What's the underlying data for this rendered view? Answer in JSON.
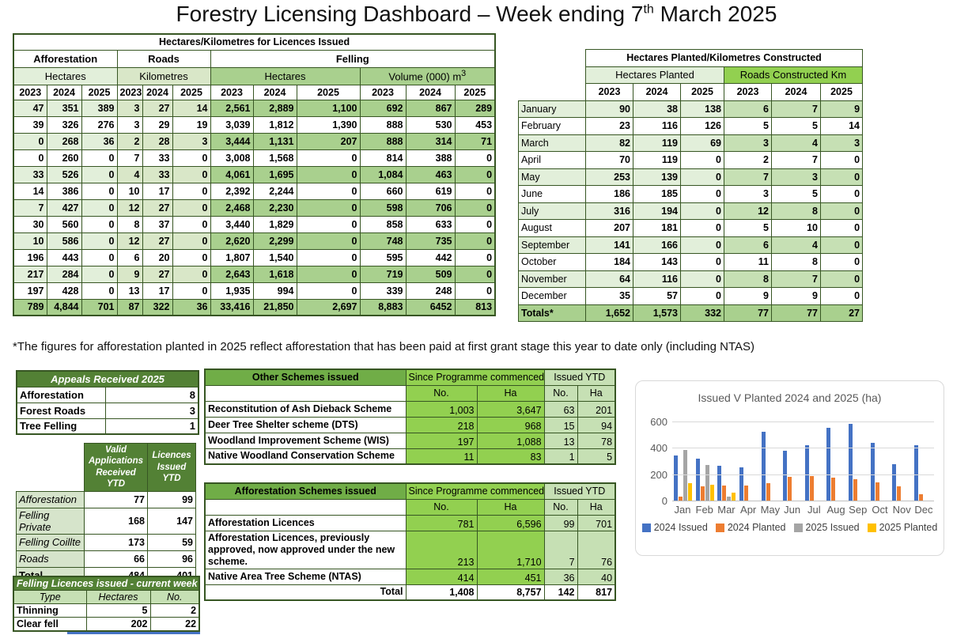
{
  "title": {
    "prefix": "Forestry Licensing Dashboard – Week ending 7",
    "sup": "th",
    "suffix": " March 2025"
  },
  "colors": {
    "border_dark_green": "#375623",
    "header_dark_green": "#538135",
    "green_bright": "#92D050",
    "green_medium": "#A9D08E",
    "green_light": "#C6E0B4",
    "green_pale": "#E2EFDA",
    "scheme_header_green": "#70AD47",
    "partial_row_blue": "#4472C4"
  },
  "licences_table": {
    "title": "Hectares/Kilometres for Licences Issued",
    "group_headers": [
      "Afforestation",
      "Roads",
      "Felling"
    ],
    "measure_headers": [
      "Hectares",
      "Kilometres",
      "Hectares"
    ],
    "volume_header": {
      "text": "Volume (000) m",
      "sup": "3"
    },
    "years": [
      "2023",
      "2024",
      "2025",
      "2023",
      "2024",
      "2025",
      "2023",
      "2024",
      "2025",
      "2023",
      "2024",
      "2025"
    ],
    "rows": [
      [
        "47",
        "351",
        "389",
        "3",
        "27",
        "14",
        "2,561",
        "2,889",
        "1,100",
        "692",
        "867",
        "289"
      ],
      [
        "39",
        "326",
        "276",
        "3",
        "29",
        "19",
        "3,039",
        "1,812",
        "1,390",
        "888",
        "530",
        "453"
      ],
      [
        "0",
        "268",
        "36",
        "2",
        "28",
        "3",
        "3,444",
        "1,131",
        "207",
        "888",
        "314",
        "71"
      ],
      [
        "0",
        "260",
        "0",
        "7",
        "33",
        "0",
        "3,008",
        "1,568",
        "0",
        "814",
        "388",
        "0"
      ],
      [
        "33",
        "526",
        "0",
        "4",
        "33",
        "0",
        "4,061",
        "1,695",
        "0",
        "1,084",
        "463",
        "0"
      ],
      [
        "14",
        "386",
        "0",
        "10",
        "17",
        "0",
        "2,392",
        "2,244",
        "0",
        "660",
        "619",
        "0"
      ],
      [
        "7",
        "427",
        "0",
        "12",
        "27",
        "0",
        "2,468",
        "2,230",
        "0",
        "598",
        "706",
        "0"
      ],
      [
        "30",
        "560",
        "0",
        "8",
        "37",
        "0",
        "3,440",
        "1,829",
        "0",
        "858",
        "633",
        "0"
      ],
      [
        "10",
        "586",
        "0",
        "12",
        "27",
        "0",
        "2,620",
        "2,299",
        "0",
        "748",
        "735",
        "0"
      ],
      [
        "196",
        "443",
        "0",
        "6",
        "20",
        "0",
        "1,807",
        "1,540",
        "0",
        "595",
        "442",
        "0"
      ],
      [
        "217",
        "284",
        "0",
        "9",
        "27",
        "0",
        "2,643",
        "1,618",
        "0",
        "719",
        "509",
        "0"
      ],
      [
        "197",
        "428",
        "0",
        "13",
        "17",
        "0",
        "1,935",
        "994",
        "0",
        "339",
        "248",
        "0"
      ]
    ],
    "totals": [
      "789",
      "4,844",
      "701",
      "87",
      "322",
      "36",
      "33,416",
      "21,850",
      "2,697",
      "8,883",
      "6452",
      "813"
    ]
  },
  "planted_table": {
    "title": "Hectares Planted/Kilometres Constructed",
    "group_headers": [
      "Hectares Planted",
      "Roads Constructed Km"
    ],
    "years": [
      "2023",
      "2024",
      "2025",
      "2023",
      "2024",
      "2025"
    ],
    "rows": [
      {
        "month": "January",
        "values": [
          "90",
          "38",
          "138",
          "6",
          "7",
          "9"
        ]
      },
      {
        "month": "February",
        "values": [
          "23",
          "116",
          "126",
          "5",
          "5",
          "14"
        ]
      },
      {
        "month": "March",
        "values": [
          "82",
          "119",
          "69",
          "3",
          "4",
          "3"
        ]
      },
      {
        "month": "April",
        "values": [
          "70",
          "119",
          "0",
          "2",
          "7",
          "0"
        ]
      },
      {
        "month": "May",
        "values": [
          "253",
          "139",
          "0",
          "7",
          "3",
          "0"
        ]
      },
      {
        "month": "June",
        "values": [
          "186",
          "185",
          "0",
          "3",
          "5",
          "0"
        ]
      },
      {
        "month": "July",
        "values": [
          "316",
          "194",
          "0",
          "12",
          "8",
          "0"
        ]
      },
      {
        "month": "August",
        "values": [
          "207",
          "181",
          "0",
          "5",
          "10",
          "0"
        ]
      },
      {
        "month": "September",
        "values": [
          "141",
          "166",
          "0",
          "6",
          "4",
          "0"
        ]
      },
      {
        "month": "October",
        "values": [
          "184",
          "143",
          "0",
          "11",
          "8",
          "0"
        ]
      },
      {
        "month": "November",
        "values": [
          "64",
          "116",
          "0",
          "8",
          "7",
          "0"
        ]
      },
      {
        "month": "December",
        "values": [
          "35",
          "57",
          "0",
          "9",
          "9",
          "0"
        ]
      }
    ],
    "totals_label": "Totals*",
    "totals": [
      "1,652",
      "1,573",
      "332",
      "77",
      "77",
      "27"
    ]
  },
  "footnote": "*The figures for afforestation planted in 2025 reflect afforestation that has been paid at first grant stage this year to date only (including NTAS)",
  "appeals": {
    "title": "Appeals Received 2025",
    "rows": [
      {
        "label": "Afforestation",
        "value": "8"
      },
      {
        "label": "Forest Roads",
        "value": "3"
      },
      {
        "label": "Tree Felling",
        "value": "1"
      }
    ]
  },
  "valid_applications": {
    "headers": [
      "Valid Applications Received YTD",
      "Licences Issued YTD"
    ],
    "rows": [
      {
        "label": "Afforestation",
        "values": [
          "77",
          "99"
        ]
      },
      {
        "label": "Felling Private",
        "values": [
          "168",
          "147"
        ]
      },
      {
        "label": "Felling Coillte",
        "values": [
          "173",
          "59"
        ]
      },
      {
        "label": "Roads",
        "values": [
          "66",
          "96"
        ]
      }
    ],
    "total": {
      "label": "Total",
      "values": [
        "484",
        "401"
      ]
    }
  },
  "felling_week": {
    "title": "Felling Licences issued - current week",
    "headers": [
      "Type",
      "Hectares",
      "No."
    ],
    "rows": [
      {
        "label": "Thinning",
        "values": [
          "5",
          "2"
        ]
      },
      {
        "label": "Clear fell",
        "values": [
          "202",
          "22"
        ]
      }
    ]
  },
  "other_schemes": {
    "title": "Other Schemes issued",
    "col_groups": [
      "Since Programme commenced",
      "Issued YTD"
    ],
    "subheaders": [
      "No.",
      "Ha",
      "No.",
      "Ha"
    ],
    "rows": [
      {
        "label": "Reconstitution of Ash Dieback Scheme",
        "values": [
          "1,003",
          "3,647",
          "63",
          "201"
        ]
      },
      {
        "label": "Deer Tree Shelter scheme (DTS)",
        "values": [
          "218",
          "968",
          "15",
          "94"
        ]
      },
      {
        "label": "Woodland Improvement Scheme (WIS)",
        "values": [
          "197",
          "1,088",
          "13",
          "78"
        ]
      },
      {
        "label": "Native Woodland Conservation Scheme",
        "values": [
          "11",
          "83",
          "1",
          "5"
        ]
      }
    ]
  },
  "afforestation_schemes": {
    "title": "Afforestation Schemes issued",
    "col_groups": [
      "Since Programme commenced",
      "Issued YTD"
    ],
    "subheaders": [
      "No.",
      "Ha",
      "No.",
      "Ha"
    ],
    "rows": [
      {
        "label": "Afforestation Licences",
        "values": [
          "781",
          "6,596",
          "99",
          "701"
        ]
      },
      {
        "label": "Afforestation Licences, previously approved, now approved under the new scheme.",
        "values": [
          "213",
          "1,710",
          "7",
          "76"
        ]
      },
      {
        "label": "Native Area Tree Scheme (NTAS)",
        "values": [
          "414",
          "451",
          "36",
          "40"
        ]
      }
    ],
    "total": {
      "label": "Total",
      "values": [
        "1,408",
        "8,757",
        "142",
        "817"
      ]
    }
  },
  "chart_data": {
    "type": "bar",
    "title": "Issued V Planted 2024 and 2025 (ha)",
    "categories": [
      "Jan",
      "Feb",
      "Mar",
      "Apr",
      "May",
      "Jun",
      "Jul",
      "Aug",
      "Sep",
      "Oct",
      "Nov",
      "Dec"
    ],
    "series": [
      {
        "name": "2024 Issued",
        "color": "#4472C4",
        "values": [
          351,
          326,
          268,
          260,
          526,
          386,
          427,
          560,
          586,
          443,
          284,
          428
        ]
      },
      {
        "name": "2024 Planted",
        "color": "#ED7D31",
        "values": [
          38,
          116,
          119,
          119,
          139,
          185,
          194,
          181,
          166,
          143,
          116,
          57
        ]
      },
      {
        "name": "2025 Issued",
        "color": "#A5A5A5",
        "values": [
          389,
          276,
          36,
          0,
          0,
          0,
          0,
          0,
          0,
          0,
          0,
          0
        ]
      },
      {
        "name": "2025 Planted",
        "color": "#FFC000",
        "values": [
          138,
          126,
          69,
          0,
          0,
          0,
          0,
          0,
          0,
          0,
          0,
          0
        ]
      }
    ],
    "ylim": [
      0,
      600
    ],
    "yticks": [
      0,
      200,
      400,
      600
    ],
    "grid": true,
    "legend_position": "bottom"
  }
}
